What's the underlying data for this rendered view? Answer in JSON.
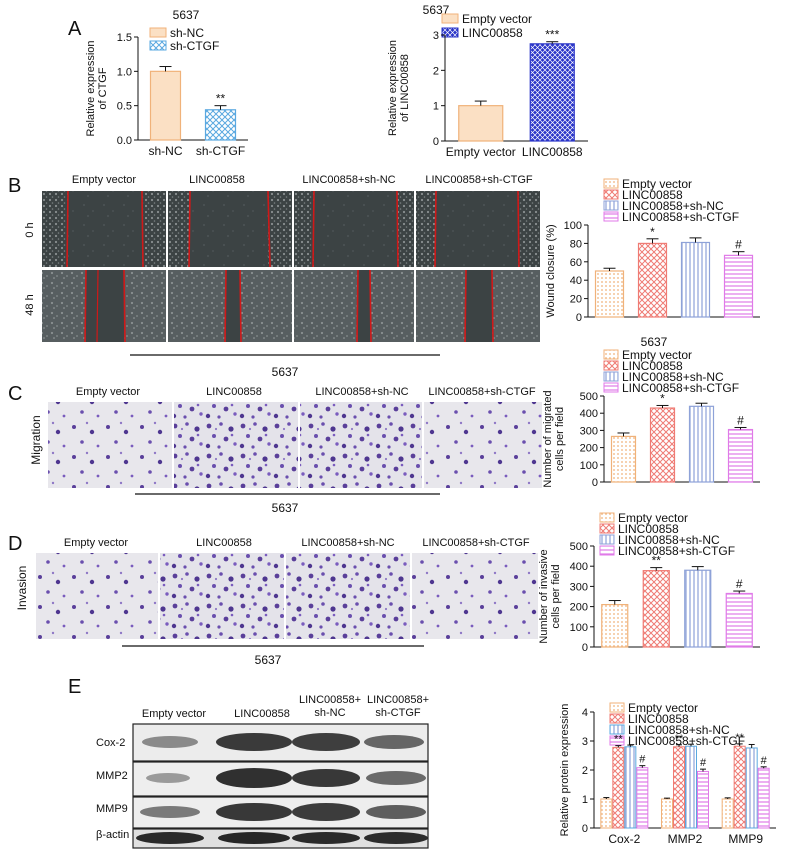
{
  "colors": {
    "empty_vector": "#f4c08c",
    "linc00858": "#ef7b74",
    "sh_nc": "#8ea2d8",
    "sh_ctgf": "#e07ae8",
    "sh_ctgf_A": "#5aa8e0",
    "linc_A": "#2a35c8",
    "cell_stain": "#5a3f9a",
    "scratch_line": "#d01818"
  },
  "panels": {
    "A": "A",
    "B": "B",
    "C": "C",
    "D": "D",
    "E": "E"
  },
  "panelA": {
    "left_title": "5637",
    "right_title": "5637",
    "left_legend": [
      "sh-NC",
      "sh-CTGF"
    ],
    "right_legend": [
      "Empty vector",
      "LINC00858"
    ]
  },
  "panelB": {
    "conditions": [
      "Empty vector",
      "LINC00858",
      "LINC00858+sh-NC",
      "LINC00858+sh-CTGF"
    ],
    "row_labels": [
      "0 h",
      "48 h"
    ],
    "cell_line": "5637",
    "legend": [
      "Empty vector",
      "LINC00858",
      "LINC00858+sh-NC",
      "LINC00858+sh-CTGF"
    ]
  },
  "panelC": {
    "conditions": [
      "Empty vector",
      "LINC00858",
      "LINC00858+sh-NC",
      "LINC00858+sh-CTGF"
    ],
    "row_label": "Migration",
    "cell_line": "5637",
    "chart_title": "5637",
    "legend": [
      "Empty vector",
      "LINC00858",
      "LINC00858+sh-NC",
      "LINC00858+sh-CTGF"
    ]
  },
  "panelD": {
    "conditions": [
      "Empty vector",
      "LINC00858",
      "LINC00858+sh-NC",
      "LINC00858+sh-CTGF"
    ],
    "row_label": "Invasion",
    "cell_line": "5637",
    "legend": [
      "Empty vector",
      "LINC00858",
      "LINC00858+sh-NC",
      "LINC00858+sh-CTGF"
    ]
  },
  "panelE": {
    "lanes": [
      [
        "Empty vector"
      ],
      [
        "LINC00858"
      ],
      [
        "LINC00858+",
        "sh-NC"
      ],
      [
        "LINC00858+",
        "sh-CTGF"
      ]
    ],
    "proteins": [
      "Cox-2",
      "MMP2",
      "MMP9",
      "β-actin"
    ],
    "legend": [
      "Empty vector",
      "LINC00858",
      "LINC00858+sh-NC",
      "LINC00858+sh-CTGF"
    ]
  },
  "chart_data": [
    {
      "id": "A_left",
      "type": "bar",
      "title": "5637",
      "categories": [
        "sh-NC",
        "sh-CTGF"
      ],
      "values": [
        1.0,
        0.44
      ],
      "errors": [
        0.07,
        0.06
      ],
      "significance": [
        "",
        "**"
      ],
      "ylabel": "Relative expression of CTGF",
      "ylim": [
        0,
        1.5
      ],
      "yticks": [
        0,
        0.5,
        1.0,
        1.5
      ],
      "ytick_labels": [
        "0.0",
        "0.5",
        "1.0",
        "1.5"
      ],
      "legend": [
        "sh-NC",
        "sh-CTGF"
      ]
    },
    {
      "id": "A_right",
      "type": "bar",
      "title": "5637",
      "categories": [
        "Empty vector",
        "LINC00858"
      ],
      "values": [
        1.0,
        2.75
      ],
      "errors": [
        0.13,
        0.06
      ],
      "significance": [
        "",
        "***"
      ],
      "ylabel": "Relative expression of LINC00858",
      "ylim": [
        0,
        3
      ],
      "yticks": [
        0,
        1,
        2,
        3
      ],
      "ytick_labels": [
        "0",
        "1",
        "2",
        "3"
      ],
      "legend": [
        "Empty vector",
        "LINC00858"
      ]
    },
    {
      "id": "B_chart",
      "type": "bar",
      "categories": [
        "Empty vector",
        "LINC00858",
        "LINC00858+sh-NC",
        "LINC00858+sh-CTGF"
      ],
      "values": [
        50,
        80,
        81,
        67
      ],
      "errors": [
        3,
        5,
        5,
        4
      ],
      "significance": [
        "",
        "*",
        "",
        "#"
      ],
      "ylabel": "Wound closure (%)",
      "ylim": [
        0,
        100
      ],
      "yticks": [
        0,
        20,
        40,
        60,
        80,
        100
      ],
      "ytick_labels": [
        "0",
        "20",
        "40",
        "60",
        "80",
        "100"
      ]
    },
    {
      "id": "C_chart",
      "type": "bar",
      "title": "5637",
      "categories": [
        "Empty vector",
        "LINC00858",
        "LINC00858+sh-NC",
        "LINC00858+sh-CTGF"
      ],
      "values": [
        265,
        430,
        440,
        305
      ],
      "errors": [
        20,
        15,
        18,
        12
      ],
      "significance": [
        "",
        "*",
        "",
        "#"
      ],
      "ylabel": "Number of migrated cells per field",
      "ylim": [
        0,
        500
      ],
      "yticks": [
        0,
        100,
        200,
        300,
        400,
        500
      ],
      "ytick_labels": [
        "0",
        "100",
        "200",
        "300",
        "400",
        "500"
      ]
    },
    {
      "id": "D_chart",
      "type": "bar",
      "categories": [
        "Empty vector",
        "LINC00858",
        "LINC00858+sh-NC",
        "LINC00858+sh-CTGF"
      ],
      "values": [
        210,
        378,
        380,
        265
      ],
      "errors": [
        20,
        15,
        18,
        12
      ],
      "significance": [
        "",
        "**",
        "",
        "#"
      ],
      "ylabel": "Number of invasive cells per field",
      "ylim": [
        0,
        500
      ],
      "yticks": [
        0,
        100,
        200,
        300,
        400,
        500
      ],
      "ytick_labels": [
        "0",
        "100",
        "200",
        "300",
        "400",
        "500"
      ]
    },
    {
      "id": "E_chart",
      "type": "bar",
      "categories": [
        "Cox-2",
        "MMP2",
        "MMP9"
      ],
      "series": [
        {
          "name": "Empty vector",
          "values": [
            1.0,
            1.0,
            1.0
          ]
        },
        {
          "name": "LINC00858",
          "values": [
            2.78,
            2.8,
            2.82
          ]
        },
        {
          "name": "LINC00858+sh-NC",
          "values": [
            2.8,
            2.82,
            2.76
          ]
        },
        {
          "name": "LINC00858+sh-CTGF",
          "values": [
            2.08,
            1.95,
            2.06
          ]
        }
      ],
      "errors": [
        [
          0.05,
          0.03,
          0.04
        ],
        [
          0.06,
          0.07,
          0.08
        ],
        [
          0.06,
          0.07,
          0.12
        ],
        [
          0.07,
          0.08,
          0.05
        ]
      ],
      "significance": [
        [
          "",
          "",
          ""
        ],
        [
          "**",
          "**",
          "**"
        ],
        [
          "",
          "",
          ""
        ],
        [
          "#",
          "#",
          "#"
        ]
      ],
      "ylabel": "Relative protein expression",
      "ylim": [
        0,
        4
      ],
      "yticks": [
        0,
        1,
        2,
        3,
        4
      ],
      "ytick_labels": [
        "0",
        "1",
        "2",
        "3",
        "4"
      ],
      "legend": [
        "Empty vector",
        "LINC00858",
        "LINC00858+sh-NC",
        "LINC00858+sh-CTGF"
      ]
    }
  ]
}
